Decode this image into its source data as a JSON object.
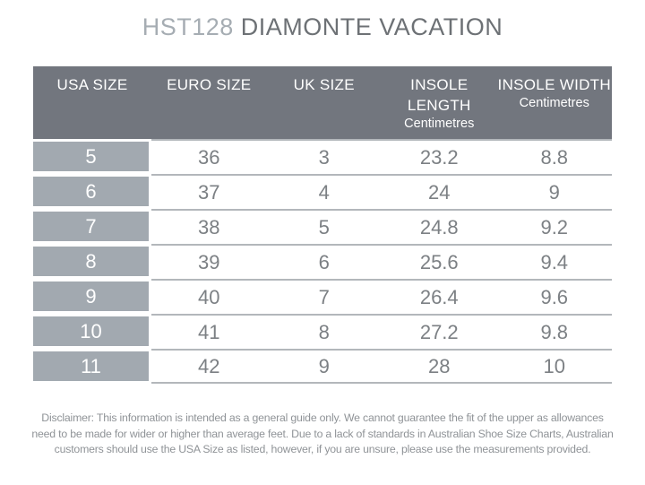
{
  "page": {
    "title": {
      "code": "HST128",
      "name": "DIAMONTE VACATION"
    }
  },
  "table": {
    "headers": [
      {
        "label": "USA SIZE",
        "sub": ""
      },
      {
        "label": "EURO SIZE",
        "sub": ""
      },
      {
        "label": "UK SIZE",
        "sub": ""
      },
      {
        "label": "INSOLE LENGTH",
        "sub": "Centimetres"
      },
      {
        "label": "INSOLE WIDTH",
        "sub": "Centimetres"
      }
    ],
    "rows": [
      {
        "usa": "5",
        "euro": "36",
        "uk": "3",
        "insole_length": "23.2",
        "insole_width": "8.8"
      },
      {
        "usa": "6",
        "euro": "37",
        "uk": "4",
        "insole_length": "24",
        "insole_width": "9"
      },
      {
        "usa": "7",
        "euro": "38",
        "uk": "5",
        "insole_length": "24.8",
        "insole_width": "9.2"
      },
      {
        "usa": "8",
        "euro": "39",
        "uk": "6",
        "insole_length": "25.6",
        "insole_width": "9.4"
      },
      {
        "usa": "9",
        "euro": "40",
        "uk": "7",
        "insole_length": "26.4",
        "insole_width": "9.6"
      },
      {
        "usa": "10",
        "euro": "41",
        "uk": "8",
        "insole_length": "27.2",
        "insole_width": "9.8"
      },
      {
        "usa": "11",
        "euro": "42",
        "uk": "9",
        "insole_length": "28",
        "insole_width": "10"
      }
    ]
  },
  "disclaimer": {
    "lines": [
      "Disclaimer: This information is intended as a general guide only. We cannot guarantee the fit of the upper as allowances",
      "need to be made for wider or higher than average feet. Due to a lack of standards in Australian Shoe Size Charts, Australian",
      "customers should use the USA Size as listed, however, if you are unsure, please use the measurements provided."
    ]
  },
  "colors": {
    "header_bg": "#72767e",
    "first_col_bg": "#a2a9b0",
    "row_line": "#b3b7bb",
    "body_text": "#7c8084",
    "title_code": "#a6adb3",
    "title_name": "#6d7175",
    "header_text": "#ffffff",
    "disclaimer_text": "#8f9397"
  },
  "chart_data": {
    "type": "table",
    "title": "HST128 DIAMONTE VACATION",
    "columns": [
      "USA SIZE",
      "EURO SIZE",
      "UK SIZE",
      "INSOLE LENGTH Centimetres",
      "INSOLE WIDTH Centimetres"
    ],
    "rows": [
      [
        5,
        36,
        3,
        23.2,
        8.8
      ],
      [
        6,
        37,
        4,
        24,
        9
      ],
      [
        7,
        38,
        5,
        24.8,
        9.2
      ],
      [
        8,
        39,
        6,
        25.6,
        9.4
      ],
      [
        9,
        40,
        7,
        26.4,
        9.6
      ],
      [
        10,
        41,
        8,
        27.2,
        9.8
      ],
      [
        11,
        42,
        9,
        28,
        10
      ]
    ]
  }
}
